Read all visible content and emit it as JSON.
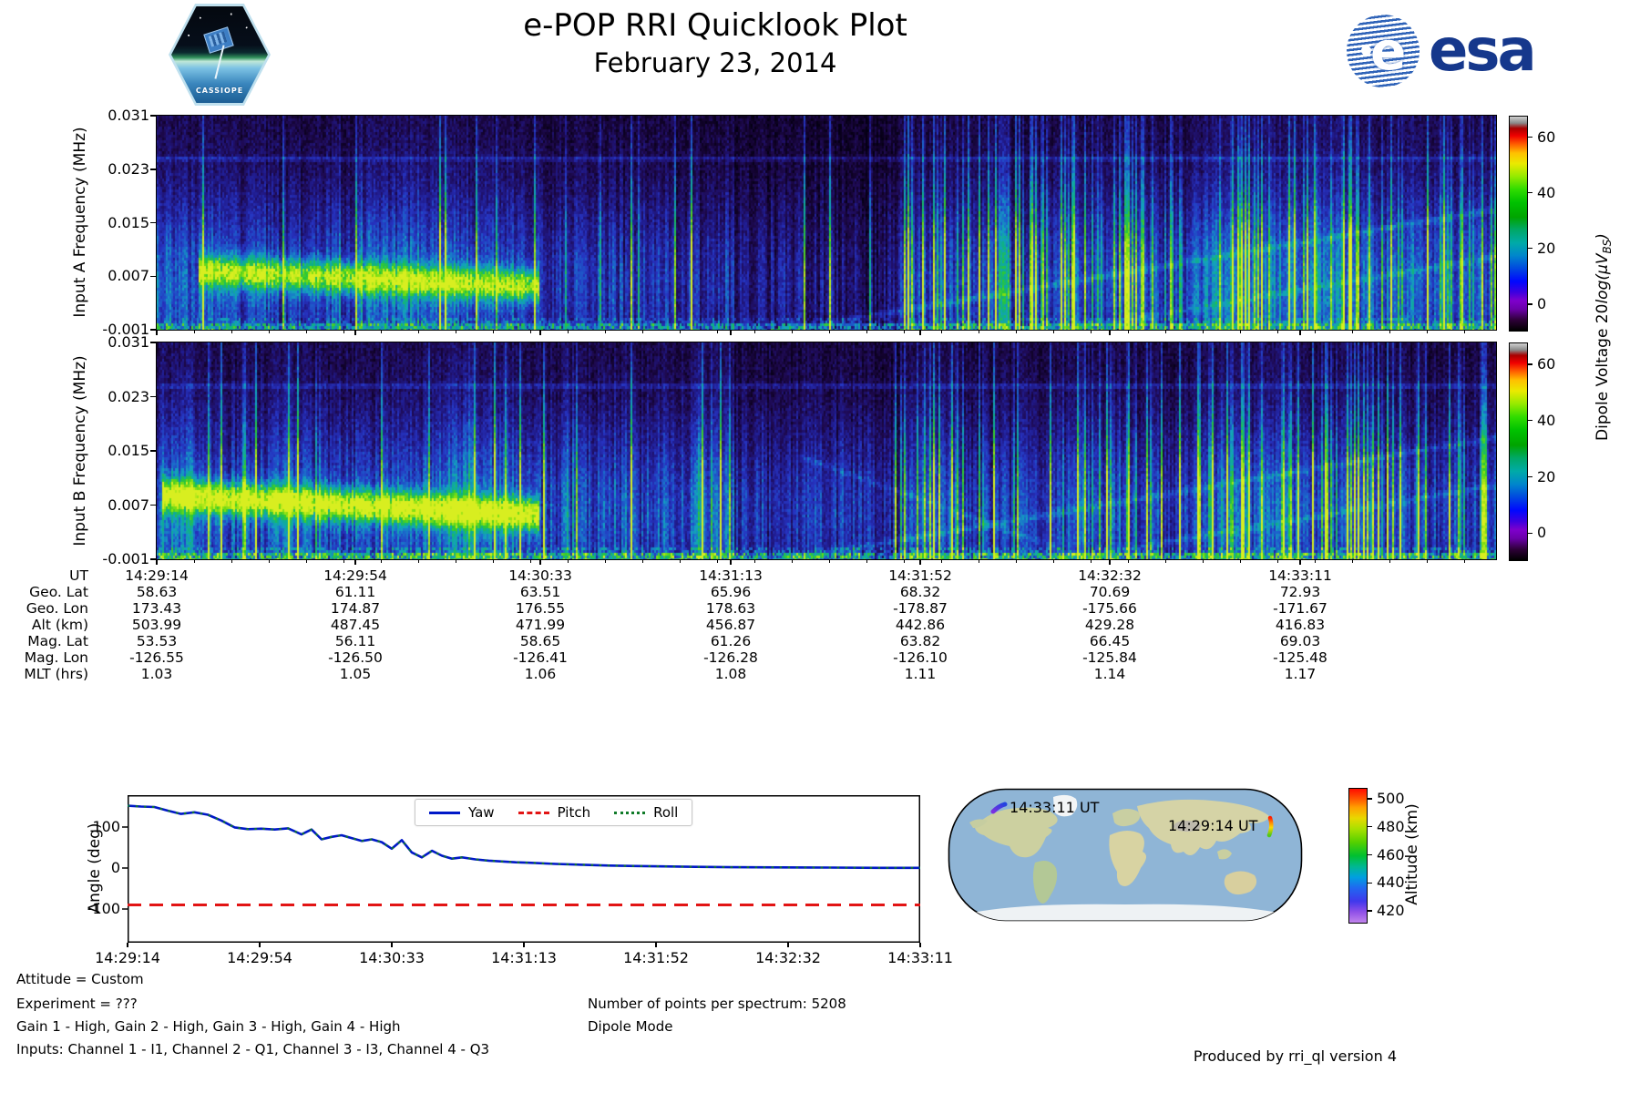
{
  "header": {
    "title": "e-POP RRI Quicklook Plot",
    "subtitle": "February 23, 2014"
  },
  "logos": {
    "cassiope_text": "CASSIOPE",
    "esa_text": "esa"
  },
  "footer": {
    "left_lines": [
      "Attitude = Custom",
      "Experiment = ???",
      "Gain 1 - High, Gain 2 - High, Gain 3 - High, Gain 4 - High",
      "Inputs: Channel 1 - I1, Channel 2 - Q1, Channel 3 - I3, Channel 4 - Q3"
    ],
    "right_lines": [
      "Number of points per spectrum: 5208",
      "Dipole Mode"
    ],
    "credit": "Produced by rri_ql version 4"
  },
  "chart_data": [
    {
      "id": "spectrogram_input_a",
      "type": "heatmap",
      "ylabel": "Input A Frequency (MHz)",
      "yticks": [
        "0.031",
        "0.023",
        "0.015",
        "0.007",
        "-0.001"
      ],
      "ylim": [
        -0.001,
        0.031
      ],
      "x_axis": "UT, shared ticks with ephemeris table UT row",
      "description": "RF spectrogram, mostly dark blue noise; bright green emission band near 0.007 MHz from 14:29:20 to 14:30:33; dark quiet region mid-pass; dense cyan vertical striation after 14:31:30; faint horizontal line near 0.0245 MHz; faint rising diagonal traces at right; green speckle along bottom edge",
      "colorbar": {
        "label_prefix": "Dipole Voltage 20",
        "label_math": "log(μV",
        "label_sub": "BS",
        "label_suffix": ")",
        "ticks": [
          "60",
          "40",
          "20",
          "0"
        ],
        "tick_fracs_from_top": [
          0.1,
          0.36,
          0.62,
          0.88
        ],
        "range_approx": [
          -10,
          67
        ],
        "stops": [
          [
            0,
            "#000000"
          ],
          [
            0.05,
            "#2e0038"
          ],
          [
            0.1,
            "#6a00a8"
          ],
          [
            0.14,
            "#7e00cc"
          ],
          [
            0.18,
            "#3c00e0"
          ],
          [
            0.23,
            "#0008ff"
          ],
          [
            0.29,
            "#0048e0"
          ],
          [
            0.35,
            "#0086cc"
          ],
          [
            0.41,
            "#00aaa8"
          ],
          [
            0.47,
            "#00a868"
          ],
          [
            0.53,
            "#00a400"
          ],
          [
            0.6,
            "#00c200"
          ],
          [
            0.66,
            "#30dc00"
          ],
          [
            0.72,
            "#94ea00"
          ],
          [
            0.78,
            "#eaea00"
          ],
          [
            0.83,
            "#ffc000"
          ],
          [
            0.87,
            "#ff6000"
          ],
          [
            0.91,
            "#f00000"
          ],
          [
            0.945,
            "#a80000"
          ],
          [
            0.97,
            "#8a8a8a"
          ],
          [
            1,
            "#d0d0d0"
          ]
        ]
      },
      "render": {
        "seed": 7,
        "band": {
          "t0": 0.03,
          "t1": 0.285,
          "y": 0.72,
          "slope": 0.07,
          "amp": 0.6
        },
        "regions": [
          [
            0,
            0.285,
            0.26,
            0.05
          ],
          [
            0.285,
            0.43,
            0.21,
            0.06
          ],
          [
            0.43,
            0.555,
            0.12,
            0.03
          ],
          [
            0.555,
            1.01,
            0.25,
            0.28
          ]
        ],
        "hline": 0.195,
        "diagonals": [
          {
            "t0": 0.42,
            "f0": 1.05,
            "t1": 1.03,
            "f1": 0.4,
            "amp": 0.13
          },
          {
            "t0": 0.6,
            "f0": 1.08,
            "t1": 1.03,
            "f1": 0.62,
            "amp": 0.1
          }
        ],
        "bottom": 0.8
      },
      "palette": [
        [
          0,
          "#050014"
        ],
        [
          0.08,
          "#12032c"
        ],
        [
          0.16,
          "#1e0a52"
        ],
        [
          0.26,
          "#201a8a"
        ],
        [
          0.36,
          "#2633c0"
        ],
        [
          0.47,
          "#1c64cc"
        ],
        [
          0.57,
          "#14a0c0"
        ],
        [
          0.68,
          "#0fb088"
        ],
        [
          0.78,
          "#2ec832"
        ],
        [
          0.88,
          "#7ede12"
        ],
        [
          1,
          "#d8ee20"
        ]
      ]
    },
    {
      "id": "spectrogram_input_b",
      "type": "heatmap",
      "ylabel": "Input B Frequency (MHz)",
      "yticks": [
        "0.031",
        "0.023",
        "0.015",
        "0.007",
        "-0.001"
      ],
      "ylim": [
        -0.001,
        0.031
      ],
      "x_axis": "UT, shared ticks with ephemeris table UT row",
      "description": "Same as Input A but stronger green emission band starting at left edge",
      "colorbar": {
        "ticks": [
          "60",
          "40",
          "20",
          "0"
        ],
        "tick_fracs_from_top": [
          0.1,
          0.36,
          0.62,
          0.88
        ],
        "range_approx": [
          -10,
          67
        ],
        "stops": [
          [
            0,
            "#000000"
          ],
          [
            0.05,
            "#2e0038"
          ],
          [
            0.1,
            "#6a00a8"
          ],
          [
            0.14,
            "#7e00cc"
          ],
          [
            0.18,
            "#3c00e0"
          ],
          [
            0.23,
            "#0008ff"
          ],
          [
            0.29,
            "#0048e0"
          ],
          [
            0.35,
            "#0086cc"
          ],
          [
            0.41,
            "#00aaa8"
          ],
          [
            0.47,
            "#00a868"
          ],
          [
            0.53,
            "#00a400"
          ],
          [
            0.6,
            "#00c200"
          ],
          [
            0.66,
            "#30dc00"
          ],
          [
            0.72,
            "#94ea00"
          ],
          [
            0.78,
            "#eaea00"
          ],
          [
            0.83,
            "#ffc000"
          ],
          [
            0.87,
            "#ff6000"
          ],
          [
            0.91,
            "#f00000"
          ],
          [
            0.945,
            "#a80000"
          ],
          [
            0.97,
            "#8a8a8a"
          ],
          [
            1,
            "#d0d0d0"
          ]
        ]
      },
      "render": {
        "seed": 13,
        "band": {
          "t0": 0.004,
          "t1": 0.285,
          "y": 0.7,
          "slope": 0.09,
          "amp": 0.7
        },
        "regions": [
          [
            0,
            0.285,
            0.28,
            0.05
          ],
          [
            0.285,
            0.43,
            0.21,
            0.06
          ],
          [
            0.43,
            0.555,
            0.12,
            0.03
          ],
          [
            0.555,
            1.01,
            0.25,
            0.26
          ]
        ],
        "hline": 0.195,
        "diagonals": [
          {
            "t0": 0.42,
            "f0": 1.05,
            "t1": 1.03,
            "f1": 0.4,
            "amp": 0.12
          },
          {
            "t0": 0.6,
            "f0": 1.08,
            "t1": 1.03,
            "f1": 0.62,
            "amp": 0.1
          },
          {
            "t0": 0.48,
            "f0": 0.52,
            "t1": 0.72,
            "f1": 1.05,
            "amp": 0.09
          }
        ],
        "bottom": 1.0
      },
      "palette": [
        [
          0,
          "#050014"
        ],
        [
          0.08,
          "#12032c"
        ],
        [
          0.16,
          "#1e0a52"
        ],
        [
          0.26,
          "#201a8a"
        ],
        [
          0.36,
          "#2633c0"
        ],
        [
          0.47,
          "#1c64cc"
        ],
        [
          0.57,
          "#14a0c0"
        ],
        [
          0.68,
          "#0fb088"
        ],
        [
          0.78,
          "#2ec832"
        ],
        [
          0.88,
          "#7ede12"
        ],
        [
          1,
          "#d8ee20"
        ]
      ]
    },
    {
      "id": "ephemeris_table",
      "type": "table",
      "row_labels": [
        "UT",
        "Geo. Lat",
        "Geo. Lon",
        "Alt (km)",
        "Mag. Lat",
        "Mag. Lon",
        "MLT (hrs)"
      ],
      "rows": [
        [
          "14:29:14",
          "14:29:54",
          "14:30:33",
          "14:31:13",
          "14:31:52",
          "14:32:32",
          "14:33:11"
        ],
        [
          "58.63",
          "61.11",
          "63.51",
          "65.96",
          "68.32",
          "70.69",
          "72.93"
        ],
        [
          "173.43",
          "174.87",
          "176.55",
          "178.63",
          "-178.87",
          "-175.66",
          "-171.67"
        ],
        [
          "503.99",
          "487.45",
          "471.99",
          "456.87",
          "442.86",
          "429.28",
          "416.83"
        ],
        [
          "53.53",
          "56.11",
          "58.65",
          "61.26",
          "63.82",
          "66.45",
          "69.03"
        ],
        [
          "-126.55",
          "-126.50",
          "-126.41",
          "-126.28",
          "-126.10",
          "-125.84",
          "-125.48"
        ],
        [
          "1.03",
          "1.05",
          "1.06",
          "1.08",
          "1.11",
          "1.14",
          "1.17"
        ]
      ]
    },
    {
      "id": "attitude_angles",
      "type": "line",
      "ylabel": "Angle (deg)",
      "yticks": [
        100,
        0,
        -100
      ],
      "ylim": [
        -185,
        178
      ],
      "xticklabels": [
        "14:29:14",
        "14:29:54",
        "14:30:33",
        "14:31:13",
        "14:31:52",
        "14:32:32",
        "14:33:11"
      ],
      "legend_position": "top center",
      "series": [
        {
          "name": "Yaw",
          "color": "#0018c8",
          "style": "solid",
          "points_t_deg": [
            [
              0,
              152
            ],
            [
              4,
              150
            ],
            [
              8,
              149
            ],
            [
              12,
              140
            ],
            [
              16,
              132
            ],
            [
              20,
              136
            ],
            [
              24,
              130
            ],
            [
              28,
              116
            ],
            [
              32,
              99
            ],
            [
              36,
              95
            ],
            [
              40,
              96
            ],
            [
              44,
              94
            ],
            [
              48,
              97
            ],
            [
              52,
              82
            ],
            [
              55,
              94
            ],
            [
              58,
              70
            ],
            [
              61,
              76
            ],
            [
              64,
              80
            ],
            [
              67,
              73
            ],
            [
              70,
              66
            ],
            [
              73,
              70
            ],
            [
              76,
              63
            ],
            [
              79,
              47
            ],
            [
              82,
              68
            ],
            [
              85,
              38
            ],
            [
              88,
              26
            ],
            [
              91,
              42
            ],
            [
              94,
              30
            ],
            [
              97,
              23
            ],
            [
              100,
              26
            ],
            [
              104,
              21
            ],
            [
              108,
              18
            ],
            [
              112,
              16
            ],
            [
              116,
              14
            ],
            [
              120,
              13
            ],
            [
              128,
              10
            ],
            [
              136,
              8
            ],
            [
              144,
              6
            ],
            [
              152,
              5
            ],
            [
              160,
              4
            ],
            [
              170,
              3
            ],
            [
              180,
              2
            ],
            [
              195,
              1.5
            ],
            [
              210,
              1
            ],
            [
              225,
              0.5
            ],
            [
              237,
              0.5
            ]
          ]
        },
        {
          "name": "Pitch",
          "color": "#e21414",
          "style": "dashed",
          "constant_deg": -90
        },
        {
          "name": "Roll",
          "color": "#0f7a28",
          "style": "dotted",
          "overlaps": "Yaw"
        }
      ],
      "t_range_seconds": [
        0,
        237
      ]
    },
    {
      "id": "ground_track_map",
      "type": "map",
      "projection": "robinson-like world map",
      "annotations": [
        {
          "label": "14:33:11 UT",
          "note": "pass end marker, purple-blue (low altitude), near Alaska"
        },
        {
          "label": "14:29:14 UT",
          "note": "pass start marker, orange-red to green (high altitude), near Kamchatka"
        }
      ],
      "colorbar": {
        "label": "Altitude (km)",
        "ticks": [
          "500",
          "480",
          "460",
          "440",
          "420"
        ],
        "tick_fracs_from_top": [
          0.08,
          0.29,
          0.5,
          0.71,
          0.92
        ],
        "stops": [
          [
            0,
            "#c184ec"
          ],
          [
            0.08,
            "#9050e8"
          ],
          [
            0.16,
            "#4038ec"
          ],
          [
            0.26,
            "#2068f0"
          ],
          [
            0.34,
            "#00a0e0"
          ],
          [
            0.42,
            "#00b890"
          ],
          [
            0.5,
            "#00c030"
          ],
          [
            0.6,
            "#54d000"
          ],
          [
            0.7,
            "#a8e000"
          ],
          [
            0.78,
            "#e8d800"
          ],
          [
            0.86,
            "#ffa000"
          ],
          [
            0.93,
            "#ff5000"
          ],
          [
            1,
            "#ff0c00"
          ]
        ]
      }
    }
  ]
}
